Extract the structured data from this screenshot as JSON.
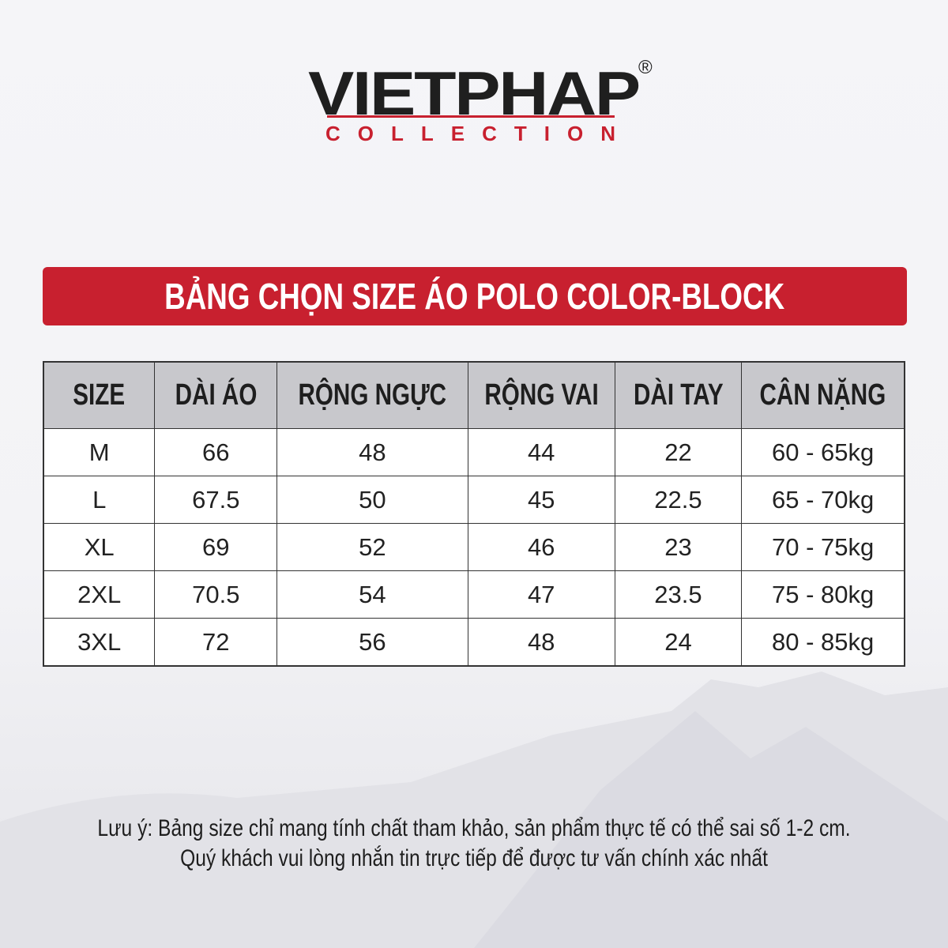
{
  "logo": {
    "main": "VIETPHAP",
    "registered": "®",
    "sub": "COLLECTION",
    "accent_color": "#c8202f"
  },
  "title": "BẢNG CHỌN SIZE ÁO POLO COLOR-BLOCK",
  "table": {
    "headers": [
      "SIZE",
      "DÀI ÁO",
      "RỘNG NGỰC",
      "RỘNG VAI",
      "DÀI TAY",
      "CÂN NẶNG"
    ],
    "rows": [
      [
        "M",
        "66",
        "48",
        "44",
        "22",
        "60 - 65kg"
      ],
      [
        "L",
        "67.5",
        "50",
        "45",
        "22.5",
        "65 - 70kg"
      ],
      [
        "XL",
        "69",
        "52",
        "46",
        "23",
        "70 - 75kg"
      ],
      [
        "2XL",
        "70.5",
        "54",
        "47",
        "23.5",
        "75 - 80kg"
      ],
      [
        "3XL",
        "72",
        "56",
        "48",
        "24",
        "80 - 85kg"
      ]
    ]
  },
  "note": {
    "line1": "Lưu ý: Bảng size chỉ mang tính chất tham khảo, sản phẩm thực tế có thể sai số 1-2 cm.",
    "line2": "Quý khách vui lòng nhắn tin trực tiếp để được tư vấn chính xác nhất"
  }
}
